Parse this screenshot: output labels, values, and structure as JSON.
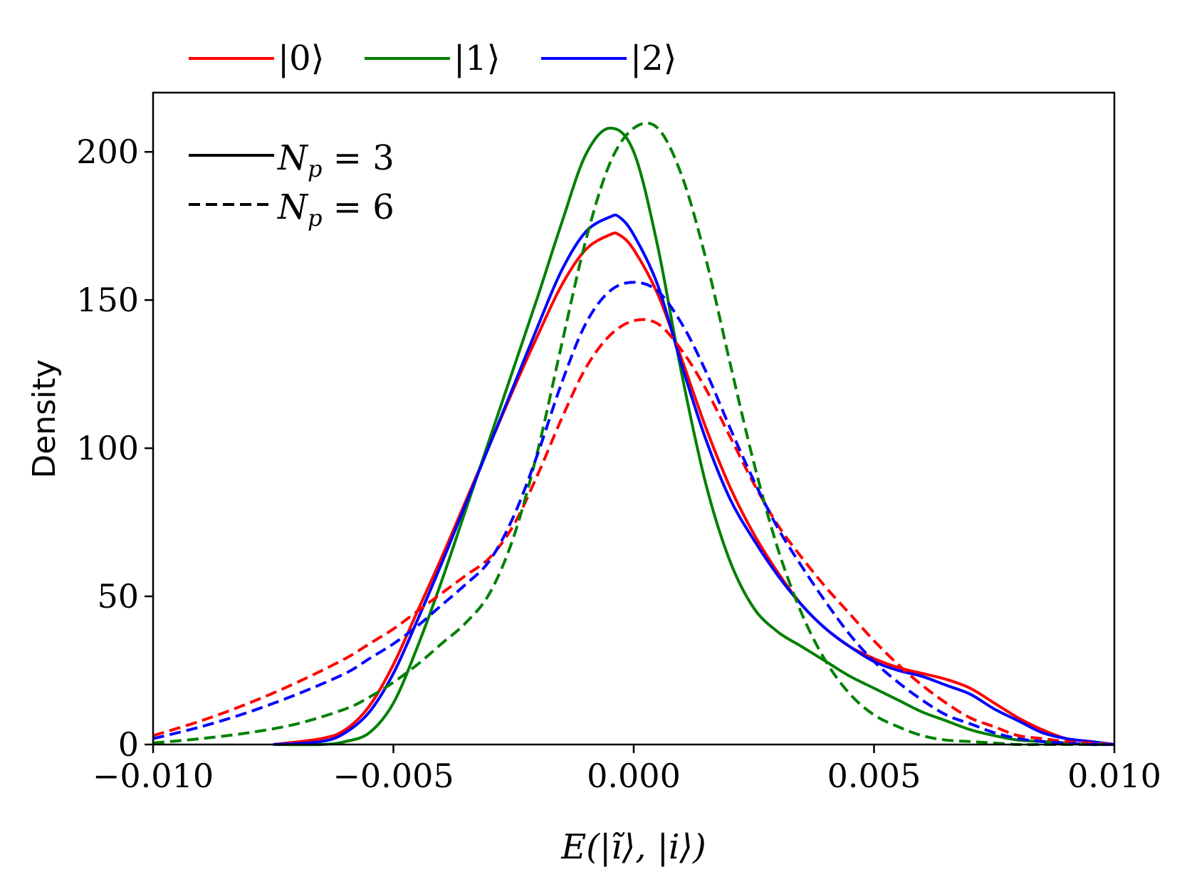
{
  "chart_data": {
    "type": "line",
    "title": "",
    "xlabel": "E(|ĩ⟩, |i⟩)",
    "ylabel": "Density",
    "xlim": [
      -0.01,
      0.01
    ],
    "ylim": [
      0,
      220
    ],
    "xticks": [
      -0.01,
      -0.005,
      0.0,
      0.005,
      0.01
    ],
    "xtick_labels": [
      "−0.010",
      "−0.005",
      "0.000",
      "0.005",
      "0.010"
    ],
    "yticks": [
      0,
      50,
      100,
      150,
      200
    ],
    "ytick_labels": [
      "0",
      "50",
      "100",
      "150",
      "200"
    ],
    "grid": false,
    "state_legend": {
      "placement": "above-top-left",
      "entries": [
        {
          "label": "|0⟩",
          "color": "#ff0000"
        },
        {
          "label": "|1⟩",
          "color": "#008000"
        },
        {
          "label": "|2⟩",
          "color": "#0000ff"
        }
      ]
    },
    "style_legend": {
      "placement": "top-left",
      "entries": [
        {
          "label": "N",
          "sub": "p",
          "eq": " = 3",
          "style": "solid"
        },
        {
          "label": "N",
          "sub": "p",
          "eq": " = 6",
          "style": "dashed"
        }
      ]
    },
    "series": [
      {
        "name": "|0⟩ Np=3",
        "color": "#ff0000",
        "style": "solid",
        "x": [
          -0.0075,
          -0.0065,
          -0.006,
          -0.0055,
          -0.005,
          -0.0045,
          -0.004,
          -0.0035,
          -0.003,
          -0.0025,
          -0.002,
          -0.0015,
          -0.001,
          -0.0005,
          -0.0003,
          0.0,
          0.0005,
          0.001,
          0.0015,
          0.002,
          0.0025,
          0.003,
          0.0035,
          0.004,
          0.0045,
          0.005,
          0.0055,
          0.006,
          0.0065,
          0.007,
          0.0075,
          0.008,
          0.0085,
          0.009,
          0.0095,
          0.01
        ],
        "y": [
          0,
          2,
          5,
          13,
          27,
          45,
          63,
          82,
          101,
          120,
          138,
          155,
          167,
          172,
          172,
          167,
          152,
          130,
          107,
          87,
          71,
          58,
          47,
          39,
          33,
          29,
          26,
          24,
          22,
          19,
          14,
          9,
          5,
          2,
          1,
          0
        ]
      },
      {
        "name": "|1⟩ Np=3",
        "color": "#008000",
        "style": "solid",
        "x": [
          -0.0075,
          -0.0065,
          -0.006,
          -0.0055,
          -0.005,
          -0.0045,
          -0.004,
          -0.0035,
          -0.003,
          -0.0025,
          -0.002,
          -0.0015,
          -0.001,
          -0.0005,
          0.0,
          0.0005,
          0.001,
          0.0015,
          0.002,
          0.0025,
          0.003,
          0.0035,
          0.004,
          0.0045,
          0.005,
          0.0055,
          0.006,
          0.0065,
          0.007,
          0.0075,
          0.008,
          0.0085,
          0.009,
          0.0095,
          0.01
        ],
        "y": [
          0,
          0,
          1,
          4,
          14,
          33,
          55,
          79,
          103,
          127,
          151,
          176,
          199,
          208,
          200,
          168,
          125,
          88,
          62,
          46,
          38,
          33,
          28,
          23,
          19,
          15,
          11,
          8,
          5,
          3,
          1.5,
          1,
          0.5,
          0,
          0
        ]
      },
      {
        "name": "|2⟩ Np=3",
        "color": "#0000ff",
        "style": "solid",
        "x": [
          -0.0075,
          -0.0065,
          -0.006,
          -0.0055,
          -0.005,
          -0.0045,
          -0.004,
          -0.0035,
          -0.003,
          -0.0025,
          -0.002,
          -0.0015,
          -0.001,
          -0.0005,
          -0.0003,
          0.0,
          0.0005,
          0.001,
          0.0015,
          0.002,
          0.0025,
          0.003,
          0.0035,
          0.004,
          0.0045,
          0.005,
          0.0055,
          0.006,
          0.0065,
          0.007,
          0.0075,
          0.008,
          0.0085,
          0.009,
          0.0095,
          0.01
        ],
        "y": [
          0,
          1,
          4,
          11,
          24,
          42,
          61,
          81,
          101,
          121,
          141,
          160,
          173,
          178,
          178,
          172,
          155,
          128,
          103,
          83,
          69,
          57,
          47,
          39,
          33,
          28,
          25,
          23,
          20,
          17,
          12,
          8,
          4,
          2,
          1,
          0
        ]
      },
      {
        "name": "|0⟩ Np=6",
        "color": "#ff0000",
        "style": "dashed",
        "x": [
          -0.01,
          -0.009,
          -0.008,
          -0.007,
          -0.006,
          -0.0055,
          -0.005,
          -0.0045,
          -0.004,
          -0.0035,
          -0.003,
          -0.0025,
          -0.002,
          -0.0015,
          -0.001,
          -0.0005,
          0.0,
          0.0005,
          0.001,
          0.0015,
          0.002,
          0.0025,
          0.003,
          0.0035,
          0.004,
          0.0045,
          0.005,
          0.0055,
          0.006,
          0.0065,
          0.007,
          0.0075,
          0.008,
          0.0085,
          0.009,
          0.0095,
          0.01
        ],
        "y": [
          3,
          8,
          14,
          21,
          29,
          34,
          39,
          45,
          51,
          57,
          63,
          74,
          91,
          110,
          127,
          138,
          143,
          142,
          133,
          120,
          104,
          88,
          74,
          63,
          53,
          44,
          35,
          27,
          20,
          14,
          9,
          6,
          3,
          2,
          1,
          0.5,
          0
        ]
      },
      {
        "name": "|1⟩ Np=6",
        "color": "#008000",
        "style": "dashed",
        "x": [
          -0.01,
          -0.009,
          -0.008,
          -0.007,
          -0.006,
          -0.0055,
          -0.005,
          -0.0045,
          -0.004,
          -0.0035,
          -0.003,
          -0.0025,
          -0.002,
          -0.0015,
          -0.001,
          -0.0005,
          0.0,
          0.0005,
          0.001,
          0.0015,
          0.002,
          0.0025,
          0.003,
          0.0035,
          0.004,
          0.0045,
          0.005,
          0.0055,
          0.006,
          0.0065,
          0.007,
          0.0075,
          0.008,
          0.0085,
          0.009,
          0.0095,
          0.01
        ],
        "y": [
          0.5,
          2,
          4,
          7,
          12,
          16,
          21,
          27,
          34,
          41,
          51,
          70,
          99,
          135,
          170,
          196,
          208,
          208,
          192,
          164,
          129,
          95,
          66,
          44,
          28,
          17,
          10,
          6,
          3,
          1.5,
          1,
          0.5,
          0,
          0,
          0,
          0,
          0
        ]
      },
      {
        "name": "|2⟩ Np=6",
        "color": "#0000ff",
        "style": "dashed",
        "x": [
          -0.01,
          -0.009,
          -0.008,
          -0.007,
          -0.006,
          -0.0055,
          -0.005,
          -0.0045,
          -0.004,
          -0.0035,
          -0.003,
          -0.0025,
          -0.002,
          -0.0015,
          -0.001,
          -0.0005,
          0.0,
          0.0005,
          0.001,
          0.0015,
          0.002,
          0.0025,
          0.003,
          0.0035,
          0.004,
          0.0045,
          0.005,
          0.0055,
          0.006,
          0.0065,
          0.007,
          0.0075,
          0.008,
          0.0085,
          0.009,
          0.0095,
          0.01
        ],
        "y": [
          2,
          6,
          11,
          17,
          24,
          29,
          34,
          40,
          47,
          54,
          62,
          77,
          98,
          122,
          142,
          153,
          156,
          153,
          142,
          126,
          107,
          89,
          73,
          60,
          48,
          37,
          28,
          21,
          15,
          10,
          7,
          4,
          2,
          1,
          0.5,
          0,
          0
        ]
      }
    ]
  }
}
